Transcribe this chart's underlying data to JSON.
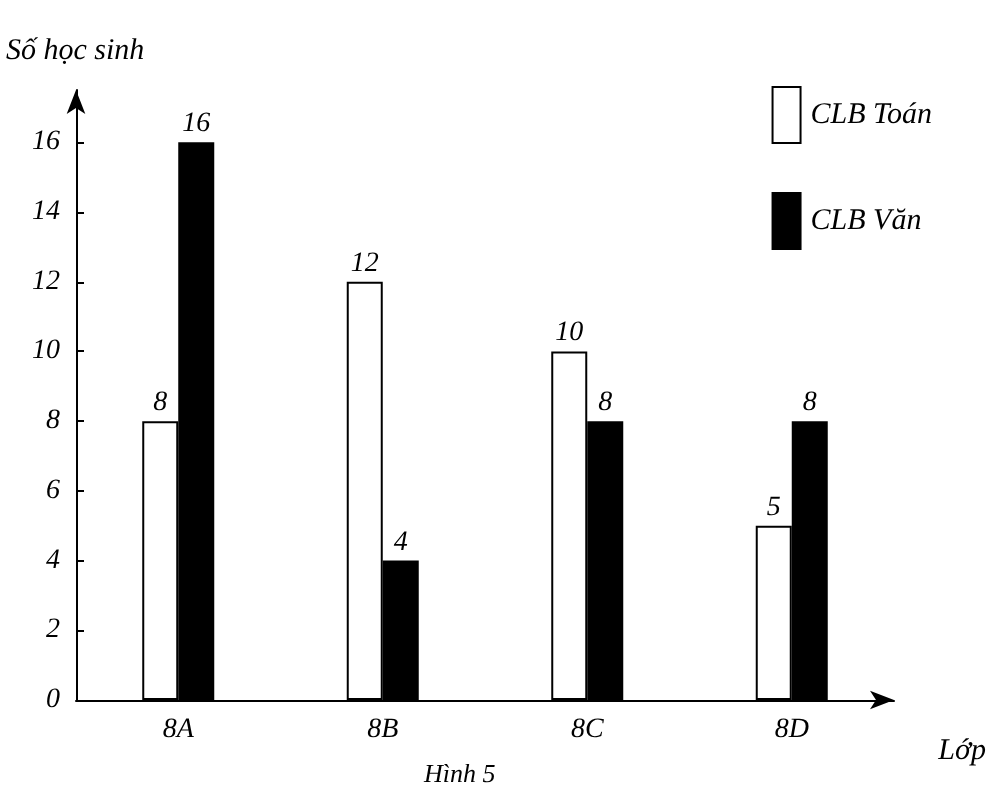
{
  "chart_data": {
    "type": "bar",
    "xlabel": "Lớp",
    "ylabel": "Số học sinh",
    "annotations": [
      "Hình 5"
    ],
    "categories": [
      "8A",
      "8B",
      "8C",
      "8D"
    ],
    "series": [
      {
        "name": "CLB Toán",
        "color": "#ffffff",
        "values": [
          8,
          12,
          10,
          5
        ]
      },
      {
        "name": "CLB Văn",
        "color": "#000000",
        "values": [
          16,
          4,
          8,
          8
        ]
      }
    ],
    "ylim": [
      0,
      17.5
    ],
    "yticks": [
      0,
      2,
      4,
      6,
      8,
      10,
      12,
      14,
      16
    ],
    "grid": false,
    "legend": "top right",
    "data_labels": true
  }
}
